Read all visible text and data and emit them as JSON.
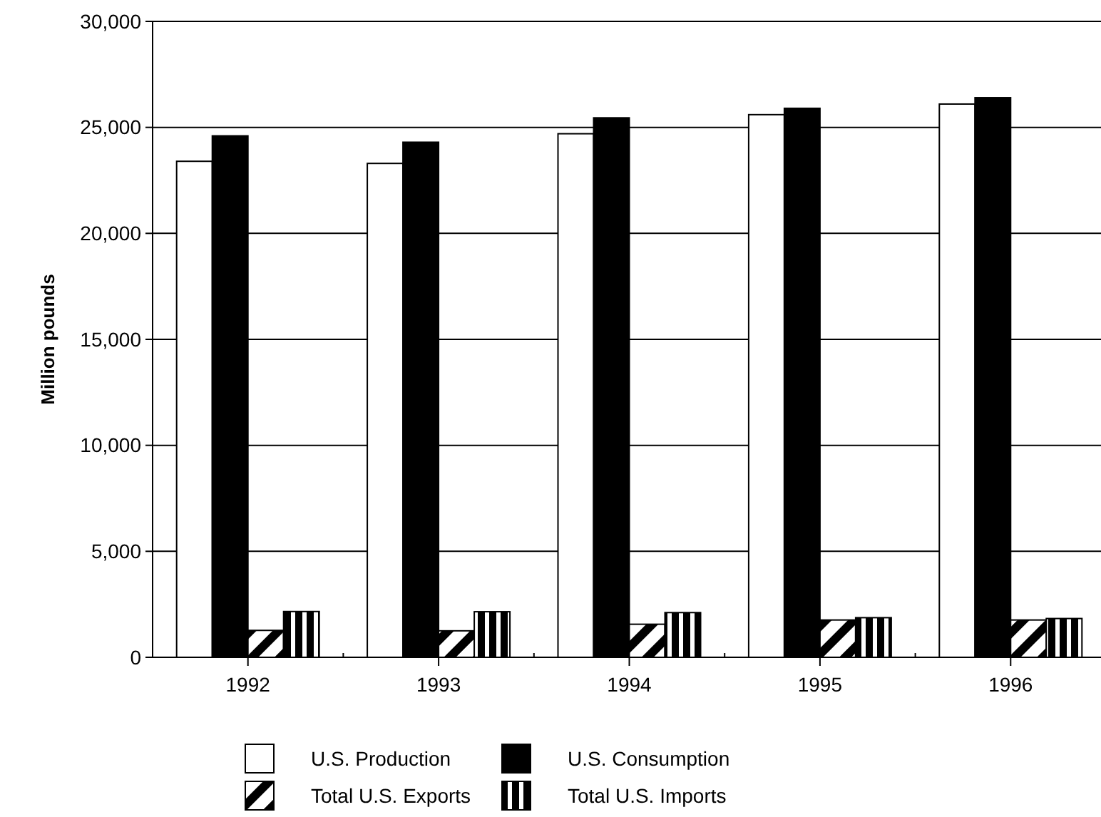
{
  "chart_data": {
    "type": "bar",
    "ylabel": "Million pounds",
    "categories": [
      "1992",
      "1993",
      "1994",
      "1995",
      "1996"
    ],
    "series": [
      {
        "name": "U.S. Production",
        "color": "#ffffff",
        "values": [
          23400,
          23300,
          24700,
          25600,
          26100
        ]
      },
      {
        "name": "U.S. Consumption",
        "color": "#000000",
        "values": [
          24600,
          24300,
          25450,
          25900,
          26400
        ]
      },
      {
        "name": "Total U.S. Exports",
        "color": "#000000",
        "values": [
          1270,
          1250,
          1560,
          1760,
          1760
        ]
      },
      {
        "name": "Total U.S. Imports",
        "color": "#000000",
        "values": [
          2160,
          2150,
          2110,
          1870,
          1830
        ]
      }
    ],
    "ylim": [
      0,
      30000
    ],
    "yticks": [
      {
        "value": 0,
        "label": "0"
      },
      {
        "value": 5000,
        "label": "5,000"
      },
      {
        "value": 10000,
        "label": "10,000"
      },
      {
        "value": 15000,
        "label": "15,000"
      },
      {
        "value": 20000,
        "label": "20,000"
      },
      {
        "value": 25000,
        "label": "25,000"
      },
      {
        "value": 30000,
        "label": "30,000"
      }
    ],
    "grid": "y",
    "legend": "bottom"
  }
}
